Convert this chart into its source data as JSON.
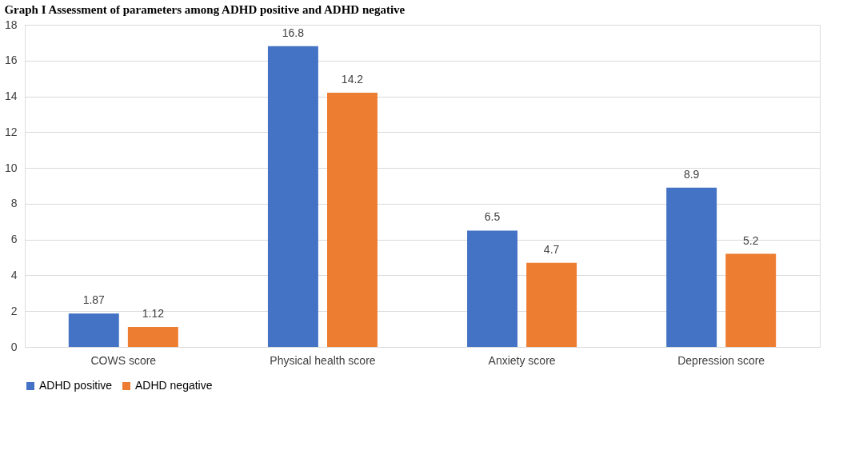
{
  "chart_data": {
    "type": "bar",
    "title": "Graph I Assessment of parameters among ADHD positive and ADHD negative",
    "categories": [
      "COWS score",
      "Physical health score",
      "Anxiety score",
      "Depression score"
    ],
    "series": [
      {
        "name": "ADHD positive",
        "color": "#4472c4",
        "values": [
          1.87,
          16.8,
          6.5,
          8.9
        ]
      },
      {
        "name": "ADHD negative",
        "color": "#ed7d31",
        "values": [
          1.12,
          14.2,
          4.7,
          5.2
        ]
      }
    ],
    "ylim": [
      0,
      18
    ],
    "yticks": [
      0,
      2,
      4,
      6,
      8,
      10,
      12,
      14,
      16,
      18
    ],
    "grid": "y",
    "legend": "bottom",
    "data_labels": true
  }
}
